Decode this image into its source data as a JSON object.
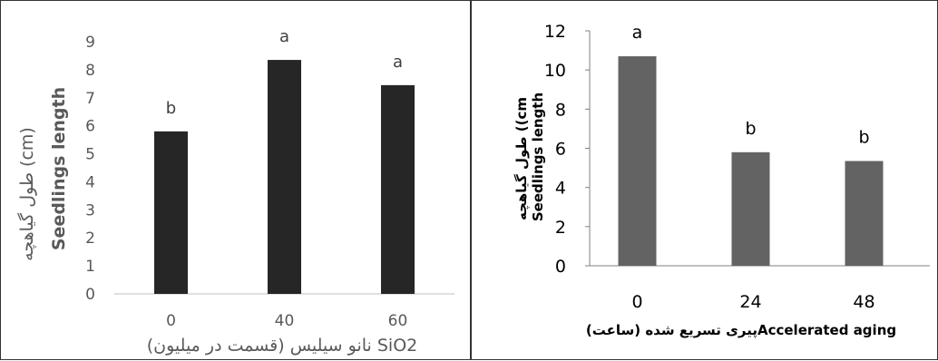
{
  "chart_data": [
    {
      "type": "bar",
      "categories": [
        "0",
        "40",
        "60"
      ],
      "values": [
        5.8,
        8.35,
        7.45
      ],
      "letters": [
        "b",
        "a",
        "a"
      ],
      "ylim": [
        0,
        9
      ],
      "yticks": [
        "0",
        "1",
        "2",
        "3",
        "4",
        "5",
        "6",
        "7",
        "8",
        "9"
      ],
      "ylabel_fa": "طول گیاهچه (cm)",
      "ylabel_en": "Seedlings length",
      "xlabel": "نانو سیلیس (قسمت در میلیون) SiO2",
      "bar_color": "#262626"
    },
    {
      "type": "bar",
      "categories": [
        "0",
        "24",
        "48"
      ],
      "values": [
        10.7,
        5.8,
        5.35
      ],
      "letters": [
        "a",
        "b",
        "b"
      ],
      "ylim": [
        0,
        12
      ],
      "yticks": [
        "0",
        "2",
        "4",
        "6",
        "8",
        "10",
        "12"
      ],
      "ylabel_fa": "طول گیاهچه ((cm",
      "ylabel_en": "Seedlings length",
      "xlabel": "پیری تسریع شده (ساعت)Accelerated aging",
      "bar_color": "#636363"
    }
  ]
}
